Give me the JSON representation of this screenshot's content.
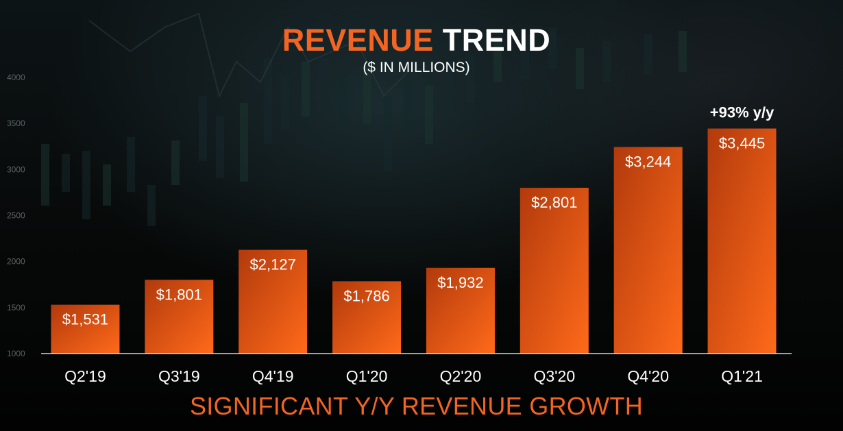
{
  "title_part1": "REVENUE",
  "title_part2": "TREND",
  "subtitle": "($ IN MILLIONS)",
  "footer": "SIGNIFICANT Y/Y REVENUE GROWTH",
  "colors": {
    "accent": "#f26522",
    "bar_dark": "#b23a0c",
    "bar_light": "#ff6a1a",
    "text": "#ffffff"
  },
  "chart_data": {
    "type": "bar",
    "categories": [
      "Q2'19",
      "Q3'19",
      "Q4'19",
      "Q1'20",
      "Q2'20",
      "Q3'20",
      "Q4'20",
      "Q1'21"
    ],
    "values": [
      1531,
      1801,
      2127,
      1786,
      1932,
      2801,
      3244,
      3445
    ],
    "labels": [
      "$1,531",
      "$1,801",
      "$2,127",
      "$1,786",
      "$1,932",
      "$2,801",
      "$3,244",
      "$3,445"
    ],
    "yticks": [
      1000,
      1500,
      2000,
      2500,
      3000,
      3500,
      4000
    ],
    "ylim": [
      1000,
      4000
    ],
    "annotation": {
      "category": "Q1'21",
      "text": "+93% y/y"
    }
  }
}
